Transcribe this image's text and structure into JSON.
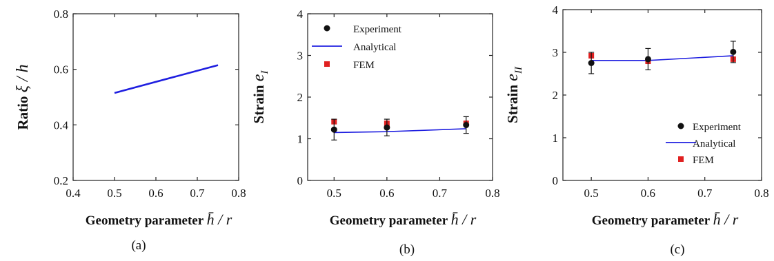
{
  "colors": {
    "analytical": "#1f1fe0",
    "experiment": "#111111",
    "fem": "#e02020",
    "axis": "#222222"
  },
  "chart_data": [
    {
      "type": "line",
      "panel_label": "(a)",
      "xlabel": "Geometry parameter",
      "xlabel_math": "h̄ / r",
      "ylabel": "Ratio",
      "ylabel_math": "ξ / h",
      "xlim": [
        0.4,
        0.8
      ],
      "ylim": [
        0.2,
        0.8
      ],
      "xticks": [
        "0.4",
        "0.5",
        "0.6",
        "0.7",
        "0.8"
      ],
      "yticks": [
        "0.2",
        "0.4",
        "0.6",
        "0.8"
      ],
      "series": [
        {
          "x": [
            0.5,
            0.75
          ],
          "y": [
            0.515,
            0.615
          ],
          "color": "#1f1fe0"
        }
      ],
      "grid": false
    },
    {
      "type": "scatter",
      "panel_label": "(b)",
      "xlabel": "Geometry parameter",
      "xlabel_math": "h̄ / r",
      "ylabel": "Strain",
      "ylabel_math": "e",
      "ylabel_sub": "I",
      "xlim": [
        0.45,
        0.8
      ],
      "ylim": [
        0,
        4
      ],
      "xticks": [
        "0.5",
        "0.6",
        "0.7",
        "0.8"
      ],
      "yticks": [
        "0",
        "1",
        "2",
        "3",
        "4"
      ],
      "legend_position": "top-left",
      "series": [
        {
          "name": "Experiment",
          "marker": "circle",
          "x": [
            0.5,
            0.6,
            0.75
          ],
          "y": [
            1.22,
            1.27,
            1.33
          ],
          "err": [
            0.25,
            0.2,
            0.2
          ]
        },
        {
          "name": "Analytical",
          "marker": "line",
          "x": [
            0.5,
            0.6,
            0.75
          ],
          "y": [
            1.15,
            1.17,
            1.24
          ]
        },
        {
          "name": "FEM",
          "marker": "square",
          "x": [
            0.5,
            0.6,
            0.75
          ],
          "y": [
            1.41,
            1.37,
            1.37
          ],
          "err": [
            0.05,
            0.05,
            0.05
          ]
        }
      ],
      "grid": false
    },
    {
      "type": "scatter",
      "panel_label": "(c)",
      "xlabel": "Geometry parameter",
      "xlabel_math": "h̄ / r",
      "ylabel": "Strain",
      "ylabel_math": "e",
      "ylabel_sub": "II",
      "xlim": [
        0.45,
        0.8
      ],
      "ylim": [
        0,
        4
      ],
      "xticks": [
        "0.5",
        "0.6",
        "0.7",
        "0.8"
      ],
      "yticks": [
        "0",
        "1",
        "2",
        "3",
        "4"
      ],
      "legend_position": "bottom-right",
      "series": [
        {
          "name": "Experiment",
          "marker": "circle",
          "x": [
            0.5,
            0.6,
            0.75
          ],
          "y": [
            2.75,
            2.84,
            3.01
          ],
          "err": [
            0.25,
            0.25,
            0.25
          ]
        },
        {
          "name": "Analytical",
          "marker": "line",
          "x": [
            0.5,
            0.6,
            0.75
          ],
          "y": [
            2.81,
            2.81,
            2.92
          ]
        },
        {
          "name": "FEM",
          "marker": "square",
          "x": [
            0.5,
            0.6,
            0.75
          ],
          "y": [
            2.92,
            2.79,
            2.84
          ],
          "err": [
            0.07,
            0.07,
            0.07
          ]
        }
      ],
      "grid": false
    }
  ]
}
